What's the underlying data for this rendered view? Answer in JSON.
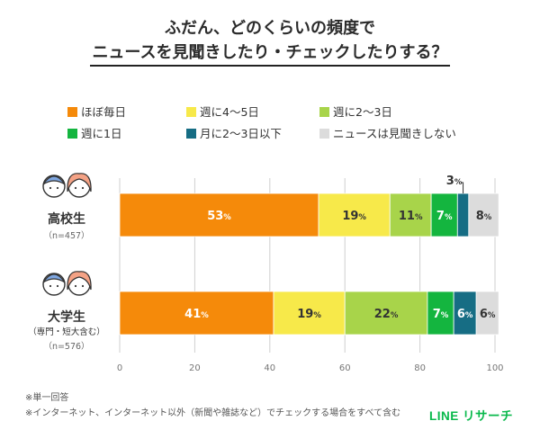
{
  "title": {
    "line1": "ふだん、どのくらいの頻度で",
    "line2": "ニュースを見聞きしたり・チェックしたりする？"
  },
  "chart_data": {
    "type": "bar",
    "orientation": "horizontal",
    "stacked": true,
    "unit": "%",
    "xlim": [
      0,
      100
    ],
    "xticks": [
      "0",
      "20",
      "40",
      "60",
      "80",
      "100"
    ],
    "grid": true,
    "legend_position": "top",
    "categories": [
      {
        "label": "高校生",
        "sublabel": "",
        "n": "（n=457）"
      },
      {
        "label": "大学生",
        "sublabel": "（専門・短大含む）",
        "n": "（n=576）"
      }
    ],
    "series": [
      {
        "name": "ほぼ毎日",
        "color": "#f58a0a",
        "values": [
          53,
          41
        ]
      },
      {
        "name": "週に4〜5日",
        "color": "#f7e94a",
        "values": [
          19,
          19
        ]
      },
      {
        "name": "週に2〜3日",
        "color": "#a8d44a",
        "values": [
          11,
          22
        ]
      },
      {
        "name": "週に1日",
        "color": "#14b53f",
        "values": [
          7,
          7
        ]
      },
      {
        "name": "月に2〜3日以下",
        "color": "#166d84",
        "values": [
          3,
          6
        ]
      },
      {
        "name": "ニュースは見聞きしない",
        "color": "#dcdcdc",
        "values": [
          8,
          6
        ]
      }
    ],
    "data_labels": [
      [
        "53",
        "19",
        "11",
        "7",
        "3",
        "8"
      ],
      [
        "41",
        "19",
        "22",
        "7",
        "6",
        "6"
      ]
    ]
  },
  "footnotes": [
    "※単一回答",
    "※インターネット、インターネット以外（新聞や雑誌など）でチェックする場合をすべて含む"
  ],
  "brand": "LINE リサーチ"
}
